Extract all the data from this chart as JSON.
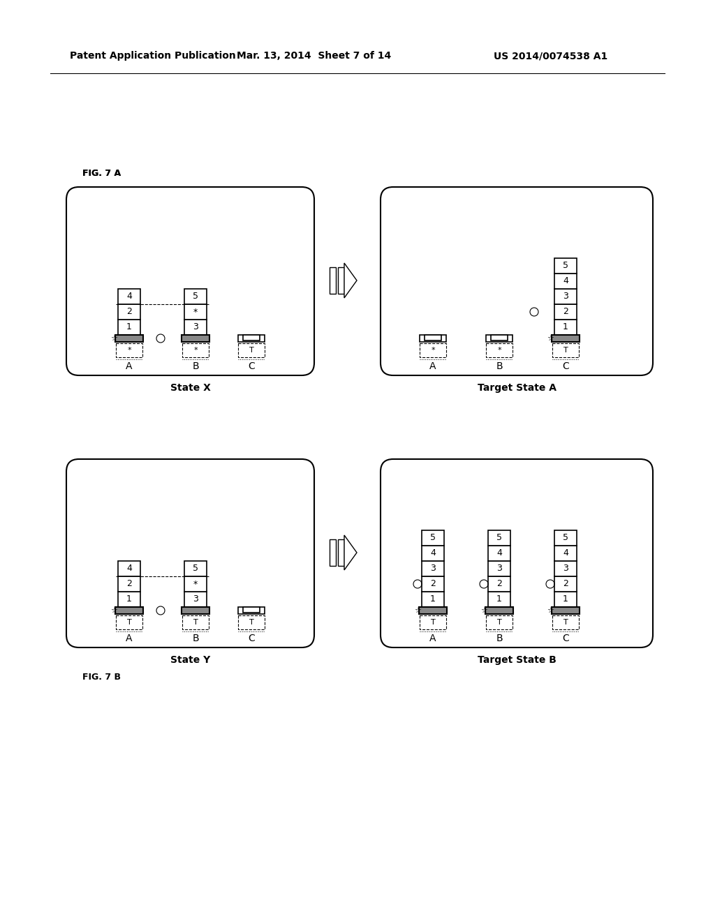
{
  "bg_color": "#ffffff",
  "header_left": "Patent Application Publication",
  "header_mid": "Mar. 13, 2014  Sheet 7 of 14",
  "header_right": "US 2014/0074538 A1",
  "fig7a_label": "FIG. 7 A",
  "fig7b_label": "FIG. 7 B",
  "stateX_label": "State X",
  "targetA_label": "Target State A",
  "stateY_label": "State Y",
  "targetB_label": "Target State B"
}
